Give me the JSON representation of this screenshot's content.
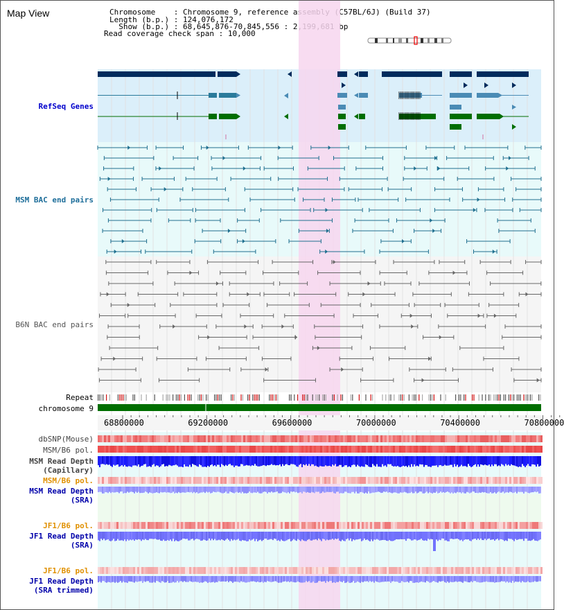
{
  "header": {
    "view_title": "Map View",
    "lines": [
      {
        "key": "Chromosome    ",
        "value": "Chromosome 9, reference assembly (C57BL/6J) (Build 37)"
      },
      {
        "key": "Length (b.p.) ",
        "value": "124,076,172"
      },
      {
        "key": "  Show (b.p.) ",
        "value": "68,645,876-70,845,556 : 2,199,681 bp"
      },
      {
        "key": "Read coverage check span",
        "value": "10,000"
      }
    ]
  },
  "colors": {
    "highlight": "#f7d6ef",
    "refseq_bg": "#dbeffa",
    "bac_bg": "#e8fafa",
    "gray_bg": "#f5f5f5",
    "navy": "#002b5c",
    "teal": "#2a7b9b",
    "steel": "#4a8bb5",
    "green": "#006e00",
    "bac_msm": "#1f6f8f",
    "bac_b6n": "#666666",
    "snp": "#f08080",
    "depth_blue": "#1a1aff",
    "depth_light": "#8a8aff"
  },
  "tracks": {
    "refseq": {
      "label": "RefSeq Genes",
      "color": "#0000cc"
    },
    "msm_bac": {
      "label": "MSM BAC end pairs",
      "color": "#1e6e9a"
    },
    "b6n_bac": {
      "label": "B6N BAC end pairs",
      "color": "#555555"
    },
    "repeat": {
      "label": "Repeat",
      "color": "#000000"
    },
    "chromosome": {
      "label": "chromosome 9",
      "color": "#000000"
    },
    "dbsnp": {
      "label": "dbSNP(Mouse)",
      "color": "#444444"
    },
    "msm_b6_pol_cap": {
      "label": "MSM/B6 pol.",
      "color": "#444444"
    },
    "msm_depth_cap": {
      "label": "MSM Read Depth\n(Capillary)",
      "color": "#444444"
    },
    "msm_b6_pol_sra": {
      "label": "MSM/B6 pol.",
      "color": "#e09000"
    },
    "msm_depth_sra": {
      "label": "MSM Read Depth\n(SRA)",
      "color": "#0000aa"
    },
    "jf1_b6_pol": {
      "label": "JF1/B6 pol.",
      "color": "#e09000"
    },
    "jf1_depth": {
      "label": "JF1 Read Depth\n(SRA)",
      "color": "#0000aa"
    },
    "jf1_b6_pol_trim": {
      "label": "JF1/B6 pol.",
      "color": "#e09000"
    },
    "jf1_depth_trim": {
      "label": "JF1 Read Depth\n(SRA trimmed)",
      "color": "#0000aa"
    }
  },
  "axis": {
    "ticks": [
      "68800000",
      "69200000",
      "69600000",
      "70000000",
      "70400000",
      "70800000"
    ]
  }
}
